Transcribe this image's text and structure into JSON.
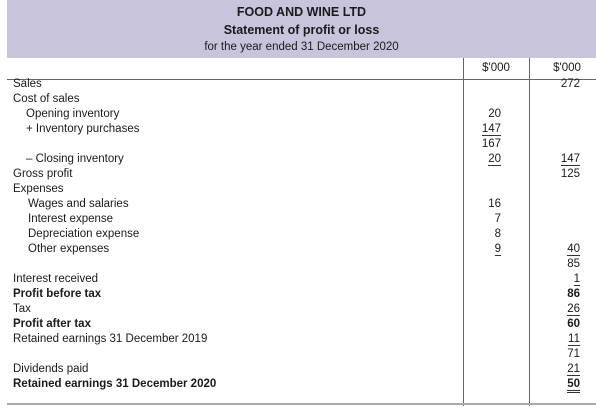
{
  "header": {
    "company": "FOOD AND WINE LTD",
    "title": "Statement of profit or loss",
    "period": "for the year ended 31 December 2020"
  },
  "columns": [
    "$'000",
    "$'000"
  ],
  "rows": [
    {
      "label": "Sales",
      "col1": "",
      "col2": "272"
    },
    {
      "label": "Cost of sales",
      "col1": "",
      "col2": ""
    },
    {
      "label": "Opening inventory",
      "col1": "20",
      "col2": ""
    },
    {
      "label": "+ Inventory purchases",
      "col1": "147",
      "col2": ""
    },
    {
      "label": "",
      "col1": "167",
      "col2": ""
    },
    {
      "label": "– Closing inventory",
      "col1": "20",
      "col2": "147"
    },
    {
      "label": "Gross profit",
      "col1": "",
      "col2": "125"
    },
    {
      "label": "Expenses",
      "col1": "",
      "col2": ""
    },
    {
      "label": "Wages and salaries",
      "col1": "16",
      "col2": ""
    },
    {
      "label": "Interest expense",
      "col1": "7",
      "col2": ""
    },
    {
      "label": "Depreciation expense",
      "col1": "8",
      "col2": ""
    },
    {
      "label": "Other expenses",
      "col1": "9",
      "col2": "40"
    },
    {
      "label": "",
      "col1": "",
      "col2": "85"
    },
    {
      "label": "Interest received",
      "col1": "",
      "col2": "1"
    },
    {
      "label": "Profit before tax",
      "col1": "",
      "col2": "86"
    },
    {
      "label": "Tax",
      "col1": "",
      "col2": "26"
    },
    {
      "label": "Profit after tax",
      "col1": "",
      "col2": "60"
    },
    {
      "label": "Retained earnings 31 December 2019",
      "col1": "",
      "col2": "11"
    },
    {
      "label": "",
      "col1": "",
      "col2": "71"
    },
    {
      "label": "Dividends paid",
      "col1": "",
      "col2": "21"
    },
    {
      "label": "Retained earnings 31 December 2020",
      "col1": "",
      "col2": "50"
    }
  ]
}
